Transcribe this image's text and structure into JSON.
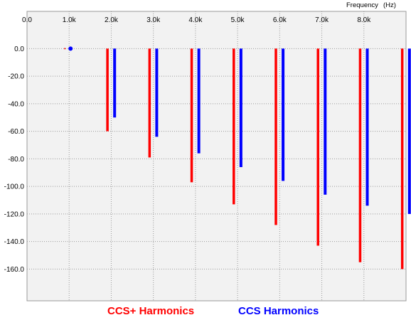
{
  "chart_data": {
    "type": "bar",
    "xlabel": "Frequency",
    "xunit": "(Hz)",
    "x_ticks": [
      "0.0",
      "1.0k",
      "2.0k",
      "3.0k",
      "4.0k",
      "5.0k",
      "6.0k",
      "7.0k",
      "8.0k"
    ],
    "x_tick_values": [
      0,
      1000,
      2000,
      3000,
      4000,
      5000,
      6000,
      7000,
      8000
    ],
    "xlim": [
      0,
      9000
    ],
    "y_ticks": [
      "0.0",
      "-20.0",
      "-40.0",
      "-60.0",
      "-80.0",
      "-100.0",
      "-120.0",
      "-140.0",
      "-160.0"
    ],
    "y_tick_values": [
      0,
      -20,
      -40,
      -60,
      -80,
      -100,
      -120,
      -140,
      -160
    ],
    "ylim": [
      -183,
      27
    ],
    "grid": true,
    "fundamental": {
      "x": 1000,
      "y": 0
    },
    "series": [
      {
        "name": "CCS+ Harmonics",
        "color": "#ff0000",
        "x": [
          2000,
          3000,
          4000,
          5000,
          6000,
          7000,
          8000,
          9000
        ],
        "values": [
          -60,
          -79,
          -97,
          -113,
          -128,
          -143,
          -155,
          -160
        ]
      },
      {
        "name": "CCS Harmonics",
        "color": "#0000ff",
        "x": [
          2000,
          3000,
          4000,
          5000,
          6000,
          7000,
          8000,
          9000
        ],
        "values": [
          -50,
          -64,
          -76,
          -86,
          -96,
          -106,
          -114,
          -120
        ]
      }
    ]
  },
  "legend": {
    "red_label": "CCS+ Harmonics",
    "blue_label": "CCS Harmonics"
  }
}
